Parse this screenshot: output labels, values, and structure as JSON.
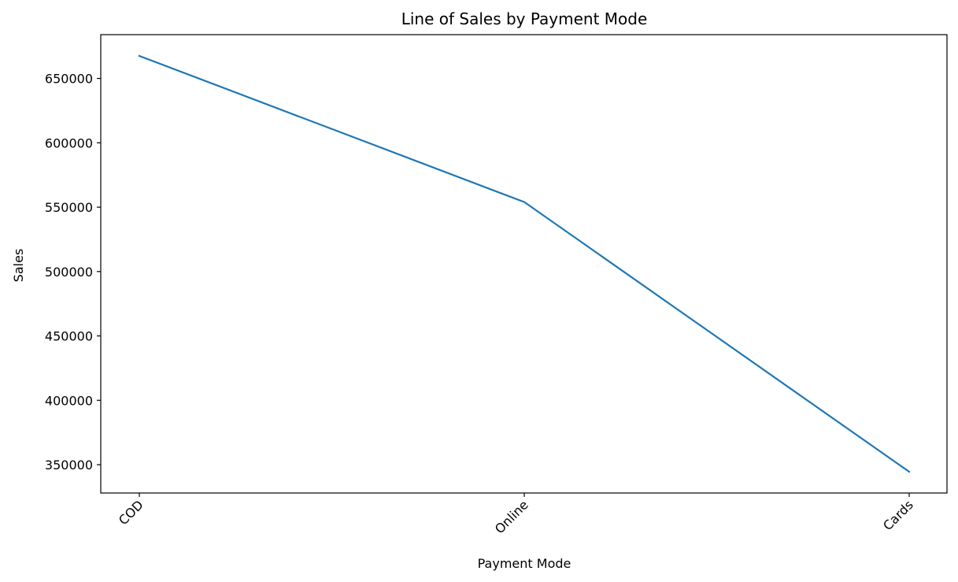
{
  "chart_data": {
    "type": "line",
    "title": "Line of Sales by Payment Mode",
    "xlabel": "Payment Mode",
    "ylabel": "Sales",
    "categories": [
      "COD",
      "Online",
      "Cards"
    ],
    "series": [
      {
        "values": [
          667500,
          554000,
          344500
        ]
      }
    ],
    "ylim": [
      328000,
      684000
    ],
    "yticks": [
      350000,
      400000,
      450000,
      500000,
      550000,
      600000,
      650000
    ],
    "ytick_labels": [
      "350000",
      "400000",
      "450000",
      "500000",
      "550000",
      "600000",
      "650000"
    ],
    "grid": false,
    "line_color": "#1f77b4"
  }
}
